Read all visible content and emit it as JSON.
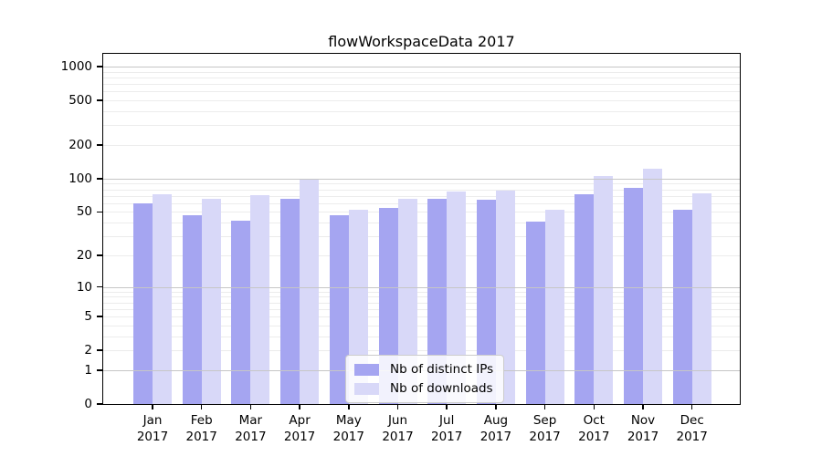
{
  "title": "flowWorkspaceData 2017",
  "colors": {
    "distinct_ips": "#a5a5f1",
    "downloads": "#d8d8f8",
    "major_gridline": "#c6c6c6",
    "minor_gridline": "#ececec",
    "axis": "#000000",
    "legend_border": "#cccccc"
  },
  "legend": {
    "items": [
      {
        "label": "Nb of distinct IPs",
        "series": "distinct_ips"
      },
      {
        "label": "Nb of downloads",
        "series": "downloads"
      }
    ]
  },
  "chart_data": {
    "type": "bar",
    "title": "flowWorkspaceData 2017",
    "categories": [
      "Jan 2017",
      "Feb 2017",
      "Mar 2017",
      "Apr 2017",
      "May 2017",
      "Jun 2017",
      "Jul 2017",
      "Aug 2017",
      "Sep 2017",
      "Oct 2017",
      "Nov 2017",
      "Dec 2017"
    ],
    "months": [
      "Jan",
      "Feb",
      "Mar",
      "Apr",
      "May",
      "Jun",
      "Jul",
      "Aug",
      "Sep",
      "Oct",
      "Nov",
      "Dec"
    ],
    "year": "2017",
    "series": [
      {
        "name": "Nb of distinct IPs",
        "color": "#a5a5f1",
        "values": [
          60,
          47,
          42,
          66,
          47,
          54,
          66,
          65,
          41,
          72,
          82,
          52
        ]
      },
      {
        "name": "Nb of downloads",
        "color": "#d8d8f8",
        "values": [
          72,
          66,
          71,
          98,
          52,
          66,
          76,
          78,
          52,
          105,
          122,
          74
        ]
      }
    ],
    "xlabel": "",
    "ylabel": "",
    "yscale": "log1p",
    "ylim": [
      0,
      1300
    ],
    "y_ticks": [
      0,
      1,
      2,
      5,
      10,
      20,
      50,
      100,
      200,
      500,
      1000
    ],
    "y_major_gridlines": [
      1,
      10,
      100,
      1000
    ],
    "y_minor_gridlines": [
      2,
      3,
      4,
      5,
      6,
      7,
      8,
      9,
      20,
      30,
      40,
      50,
      60,
      70,
      80,
      90,
      200,
      300,
      400,
      500,
      600,
      700,
      800,
      900
    ],
    "grid": true,
    "legend_position": "bottom-center"
  }
}
